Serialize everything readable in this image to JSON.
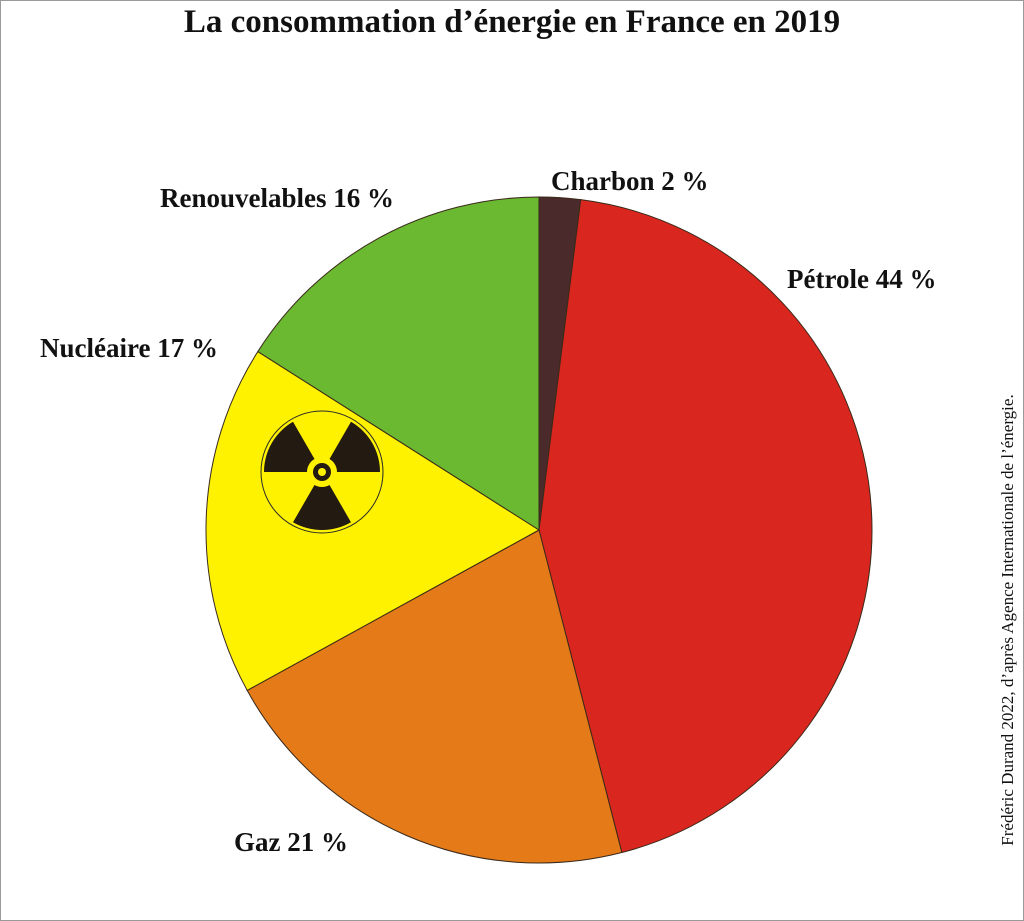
{
  "title": "La consommation d’énergie en France en 2019",
  "source": "Frédéric Durand 2022, d’après Agence Internationale de l’énergie.",
  "chart_data": {
    "type": "pie",
    "title": "La consommation d’énergie en France en 2019",
    "unit": "%",
    "slices": [
      {
        "name": "Charbon",
        "value": 2,
        "label": "Charbon 2 %",
        "color": "#4a2a2a"
      },
      {
        "name": "Pétrole",
        "value": 44,
        "label": "Pétrole 44 %",
        "color": "#d9261e"
      },
      {
        "name": "Gaz",
        "value": 21,
        "label": "Gaz 21 %",
        "color": "#e57a19"
      },
      {
        "name": "Nucléaire",
        "value": 17,
        "label": "Nucléaire 17 %",
        "color": "#fff200",
        "icon": "radiation-icon"
      },
      {
        "name": "Renouvelables",
        "value": 16,
        "label": "Renouvelables 16 %",
        "color": "#6bb831"
      }
    ]
  }
}
